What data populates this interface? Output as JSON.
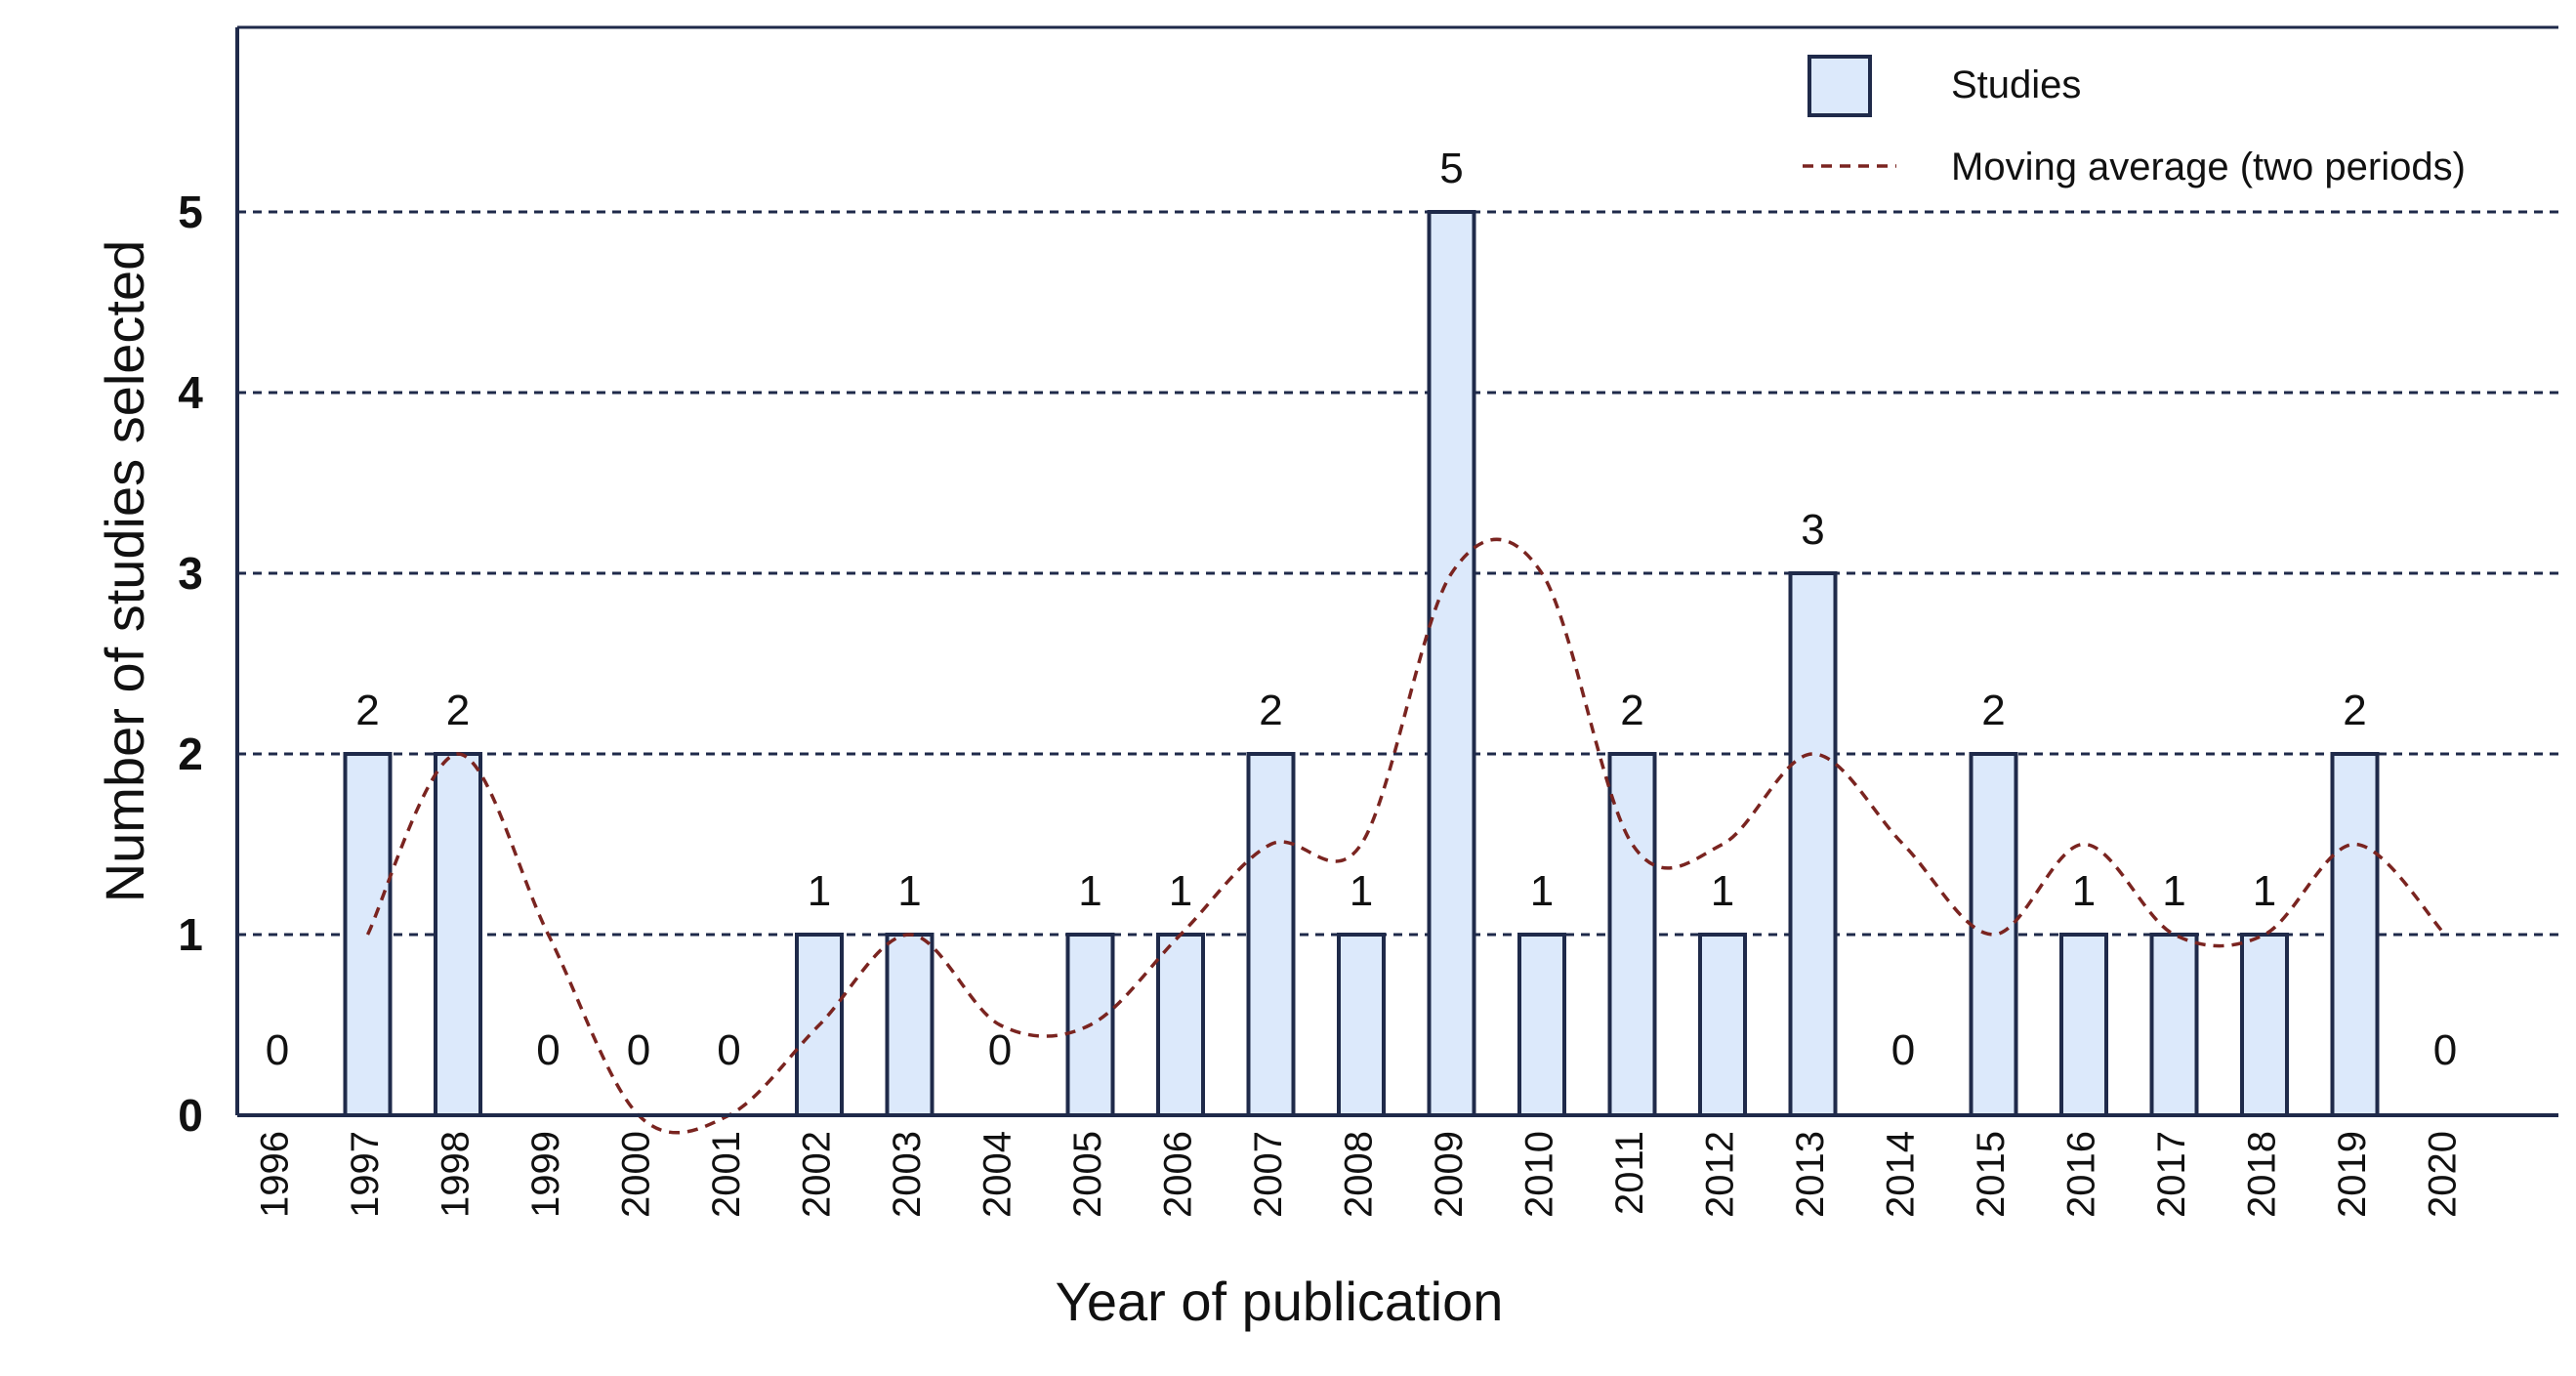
{
  "chart_data": {
    "type": "bar",
    "xlabel": "Year of publication",
    "ylabel": "Number of studies selected",
    "ylim": [
      0,
      5
    ],
    "yticks": [
      0,
      1,
      2,
      3,
      4,
      5
    ],
    "grid": "horizontal dashed",
    "legend_position": "top-right",
    "categories": [
      "1996",
      "1997",
      "1998",
      "1999",
      "2000",
      "2001",
      "2002",
      "2003",
      "2004",
      "2005",
      "2006",
      "2007",
      "2008",
      "2009",
      "2010",
      "2011",
      "2012",
      "2013",
      "2014",
      "2015",
      "2016",
      "2017",
      "2018",
      "2019",
      "2020"
    ],
    "series": [
      {
        "name": "Studies",
        "type": "bar",
        "values": [
          0,
          2,
          2,
          0,
          0,
          0,
          1,
          1,
          0,
          1,
          1,
          2,
          1,
          5,
          1,
          2,
          1,
          3,
          0,
          2,
          1,
          1,
          1,
          2,
          0
        ],
        "labels": [
          "0",
          "2",
          "2",
          "0",
          "0",
          "0",
          "1",
          "1",
          "0",
          "1",
          "1",
          "2",
          "1",
          "5",
          "1",
          "2",
          "1",
          "3",
          "0",
          "2",
          "1",
          "1",
          "1",
          "2",
          "0"
        ],
        "color": "#dce9fb",
        "edge_color": "#1f2a4a"
      },
      {
        "name": "Moving average (two periods)",
        "type": "line",
        "style": "dashed",
        "values": [
          null,
          1,
          2,
          1,
          0,
          0,
          0.5,
          1,
          0.5,
          0.5,
          1,
          1.5,
          1.5,
          3,
          3,
          1.5,
          1.5,
          2,
          1.5,
          1,
          1.5,
          1,
          1,
          1.5,
          1
        ],
        "color": "#7a2420"
      }
    ]
  }
}
